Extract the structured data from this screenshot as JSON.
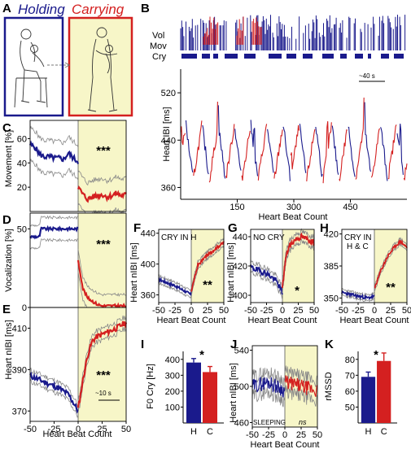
{
  "panels": {
    "A": {
      "letter": "A",
      "title_left": "Holding",
      "title_right": "Carrying"
    },
    "B": {
      "letter": "B",
      "row_vol": "Vol",
      "row_mov": "Mov",
      "row_cry": "Cry",
      "scale": "~40 s",
      "ylabel": "Heart IBI [ms]",
      "xlabel": "Heart Beat Count",
      "yticks": [
        "360",
        "440",
        "520"
      ],
      "xticks": [
        "150",
        "300",
        "450"
      ]
    },
    "C": {
      "letter": "C",
      "ylabel": "Movement [%]",
      "yticks": [
        "20",
        "40",
        "60"
      ],
      "stars": "***"
    },
    "D": {
      "letter": "D",
      "ylabel": "Vocalization [%]",
      "yticks": [
        "0",
        "50"
      ],
      "stars": "***"
    },
    "E": {
      "letter": "E",
      "ylabel": "Heart nIBI [ms]",
      "yticks": [
        "370",
        "390",
        "410"
      ],
      "stars": "***",
      "scale": "~10 s",
      "xticks": [
        "-50",
        "-25",
        "0",
        "25",
        "50"
      ],
      "xlabel": "Heart Beat Count"
    },
    "F": {
      "letter": "F",
      "label": "CRY IN H",
      "ylabel": "Heart nIBI [ms]",
      "yticks": [
        "360",
        "400",
        "440"
      ],
      "stars": "**",
      "xticks": [
        "-50",
        "-25",
        "0",
        "25",
        "50"
      ],
      "xlabel": "Heart Beat Count"
    },
    "G": {
      "letter": "G",
      "label": "NO CRY",
      "ylabel": "Heart nIBI [ms]",
      "yticks": [
        "400",
        "420",
        "440"
      ],
      "stars": "*",
      "xticks": [
        "-50",
        "-25",
        "0",
        "25",
        "50"
      ],
      "xlabel": "Heart Beat Count"
    },
    "H": {
      "letter": "H",
      "label1": "CRY IN",
      "label2": "H & C",
      "yticks": [
        "350",
        "385",
        "420"
      ],
      "stars": "**",
      "xticks": [
        "-50",
        "-25",
        "0",
        "25",
        "50"
      ],
      "xlabel": "Heart Beat Count"
    },
    "I": {
      "letter": "I",
      "ylabel": "F0 Cry [Hz]",
      "yticks": [
        "100",
        "200",
        "300",
        "400"
      ],
      "stars": "*"
    },
    "J": {
      "letter": "J",
      "label": "SLEEPING",
      "ns": "ns",
      "ylabel": "Heart nIBI [ms]",
      "yticks": [
        "460",
        "500",
        "540"
      ],
      "xticks": [
        "-50",
        "-25",
        "0",
        "25",
        "50"
      ],
      "xlabel": "Heart Beat Count"
    },
    "K": {
      "letter": "K",
      "ylabel": "rMSSD",
      "yticks": [
        "50",
        "60",
        "70",
        "80"
      ],
      "stars": "*"
    }
  },
  "colors": {
    "holding": "#1a1a8c",
    "carrying": "#d42020",
    "shade": "#f7f6c8",
    "sem": "#888888"
  },
  "chart_data": [
    {
      "id": "B",
      "type": "line",
      "xlabel": "Heart Beat Count",
      "ylabel": "Heart IBI [ms]",
      "xlim": [
        0,
        600
      ],
      "ylim": [
        340,
        560
      ],
      "series": [
        {
          "name": "Holding",
          "color": "#1a1a8c"
        },
        {
          "name": "Carrying",
          "color": "#d42020"
        }
      ]
    },
    {
      "id": "C",
      "type": "line",
      "ylabel": "Movement [%]",
      "xlim": [
        -50,
        50
      ],
      "ylim": [
        0,
        75
      ],
      "series": [
        {
          "name": "H",
          "x": [
            -50,
            -45,
            -40,
            -35,
            -30,
            -25,
            -20,
            -15,
            -10,
            -5,
            0
          ],
          "values": [
            55,
            53,
            47,
            45,
            45,
            44,
            44,
            43,
            48,
            44,
            41
          ]
        },
        {
          "name": "C",
          "x": [
            0,
            5,
            10,
            15,
            20,
            25,
            30,
            35,
            40,
            45,
            50
          ],
          "values": [
            20,
            14,
            10,
            12,
            13,
            14,
            12,
            13,
            15,
            13,
            14
          ]
        }
      ]
    },
    {
      "id": "D",
      "type": "line",
      "ylabel": "Vocalization [%]",
      "xlim": [
        -50,
        50
      ],
      "ylim": [
        0,
        60
      ],
      "series": [
        {
          "name": "H",
          "x": [
            -50,
            -40,
            -39,
            -30,
            -20,
            -10,
            0
          ],
          "values": [
            45,
            45,
            50,
            50,
            50,
            50,
            50
          ]
        },
        {
          "name": "C",
          "x": [
            0,
            5,
            10,
            15,
            20,
            25,
            30,
            40,
            50
          ],
          "values": [
            30,
            12,
            6,
            4,
            2,
            1,
            1,
            1,
            1
          ]
        }
      ]
    },
    {
      "id": "E",
      "type": "line",
      "ylabel": "Heart nIBI [ms]",
      "xlabel": "Heart Beat Count",
      "xlim": [
        -50,
        50
      ],
      "ylim": [
        365,
        420
      ],
      "series": [
        {
          "name": "H",
          "x": [
            -50,
            -40,
            -30,
            -20,
            -10,
            -5,
            0
          ],
          "values": [
            387,
            385,
            383,
            381,
            378,
            374,
            370
          ]
        },
        {
          "name": "C",
          "x": [
            0,
            5,
            10,
            15,
            20,
            30,
            40,
            50
          ],
          "values": [
            371,
            385,
            397,
            404,
            406,
            408,
            410,
            413
          ]
        }
      ]
    },
    {
      "id": "F",
      "type": "line",
      "xlim": [
        -50,
        50
      ],
      "ylim": [
        350,
        445
      ],
      "series": [
        {
          "name": "H",
          "x": [
            -50,
            -25,
            -10,
            0
          ],
          "values": [
            380,
            372,
            365,
            360
          ]
        },
        {
          "name": "C",
          "x": [
            0,
            10,
            20,
            30,
            40,
            50
          ],
          "values": [
            365,
            398,
            408,
            415,
            422,
            428
          ]
        }
      ]
    },
    {
      "id": "G",
      "type": "line",
      "xlim": [
        -50,
        50
      ],
      "ylim": [
        395,
        445
      ],
      "series": [
        {
          "name": "H",
          "x": [
            -50,
            -25,
            -10,
            0
          ],
          "values": [
            419,
            415,
            410,
            402
          ]
        },
        {
          "name": "C",
          "x": [
            0,
            5,
            10,
            20,
            30,
            40,
            50
          ],
          "values": [
            405,
            425,
            433,
            438,
            440,
            438,
            436
          ]
        }
      ]
    },
    {
      "id": "H",
      "type": "line",
      "xlim": [
        -50,
        50
      ],
      "ylim": [
        345,
        425
      ],
      "series": [
        {
          "name": "H",
          "x": [
            -50,
            -25,
            -10,
            0
          ],
          "values": [
            356,
            352,
            350,
            352
          ]
        },
        {
          "name": "C",
          "x": [
            0,
            10,
            20,
            30,
            40,
            50
          ],
          "values": [
            360,
            380,
            395,
            405,
            412,
            405
          ]
        }
      ]
    },
    {
      "id": "I",
      "type": "bar",
      "ylabel": "F0 Cry [Hz]",
      "ylim": [
        0,
        450
      ],
      "categories": [
        "H",
        "C"
      ],
      "values": [
        380,
        320
      ],
      "errors": [
        25,
        35
      ]
    },
    {
      "id": "J",
      "type": "line",
      "xlim": [
        -50,
        50
      ],
      "ylim": [
        455,
        545
      ],
      "series": [
        {
          "name": "H",
          "x": [
            -50,
            -25,
            0
          ],
          "values": [
            500,
            505,
            495
          ]
        },
        {
          "name": "C",
          "x": [
            0,
            25,
            50
          ],
          "values": [
            505,
            500,
            495
          ]
        }
      ]
    },
    {
      "id": "K",
      "type": "bar",
      "ylabel": "rMSSD",
      "ylim": [
        40,
        85
      ],
      "categories": [
        "H",
        "C"
      ],
      "values": [
        69,
        79
      ],
      "errors": [
        3,
        5
      ]
    }
  ]
}
